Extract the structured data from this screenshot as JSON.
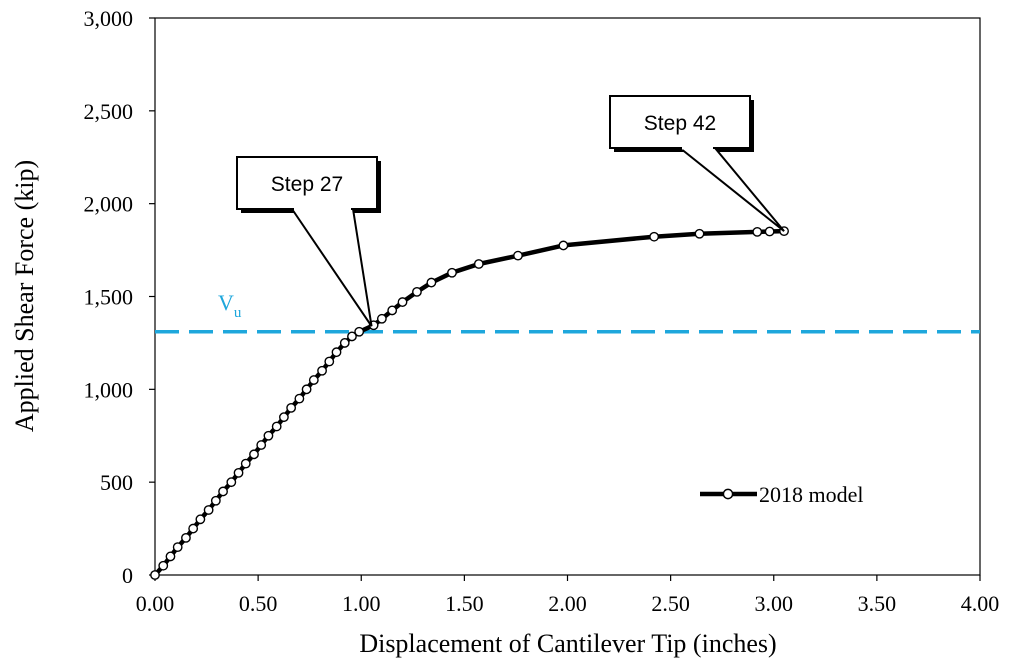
{
  "chart_data": {
    "type": "line",
    "xlabel": "Displacement of Cantilever Tip (inches)",
    "ylabel": "Applied Shear Force (kip)",
    "xlim": [
      0,
      4
    ],
    "ylim": [
      0,
      3000
    ],
    "x_ticks": [
      0,
      0.5,
      1.0,
      1.5,
      2.0,
      2.5,
      3.0,
      3.5,
      4.0
    ],
    "x_tick_labels": [
      "0.00",
      "0.50",
      "1.00",
      "1.50",
      "2.00",
      "2.50",
      "3.00",
      "3.50",
      "4.00"
    ],
    "y_ticks": [
      0,
      500,
      1000,
      1500,
      2000,
      2500,
      3000
    ],
    "y_tick_labels": [
      "0",
      "500",
      "1,000",
      "1,500",
      "2,000",
      "2,500",
      "3,000"
    ],
    "grid": false,
    "legend_position": "bottom-right",
    "series": [
      {
        "name": "2018 model",
        "color": "#000000",
        "marker": "open-circle",
        "points": [
          [
            0.0,
            0
          ],
          [
            0.04,
            50
          ],
          [
            0.075,
            100
          ],
          [
            0.11,
            150
          ],
          [
            0.15,
            200
          ],
          [
            0.185,
            250
          ],
          [
            0.22,
            300
          ],
          [
            0.26,
            350
          ],
          [
            0.295,
            400
          ],
          [
            0.33,
            450
          ],
          [
            0.37,
            500
          ],
          [
            0.405,
            550
          ],
          [
            0.44,
            600
          ],
          [
            0.48,
            650
          ],
          [
            0.515,
            700
          ],
          [
            0.55,
            750
          ],
          [
            0.59,
            800
          ],
          [
            0.625,
            850
          ],
          [
            0.66,
            900
          ],
          [
            0.7,
            950
          ],
          [
            0.735,
            1000
          ],
          [
            0.77,
            1050
          ],
          [
            0.81,
            1100
          ],
          [
            0.845,
            1150
          ],
          [
            0.88,
            1200
          ],
          [
            0.92,
            1250
          ],
          [
            0.955,
            1285
          ],
          [
            0.99,
            1310
          ],
          [
            1.06,
            1345
          ],
          [
            1.1,
            1380
          ],
          [
            1.15,
            1425
          ],
          [
            1.2,
            1470
          ],
          [
            1.27,
            1525
          ],
          [
            1.34,
            1575
          ],
          [
            1.44,
            1628
          ],
          [
            1.57,
            1675
          ],
          [
            1.76,
            1720
          ],
          [
            1.98,
            1775
          ],
          [
            2.42,
            1822
          ],
          [
            2.64,
            1838
          ],
          [
            2.92,
            1848
          ],
          [
            2.98,
            1850
          ],
          [
            3.05,
            1852
          ]
        ]
      }
    ],
    "reference_line": {
      "label_main": "V",
      "label_sub": "u",
      "value": 1310,
      "color": "#1EA7DC",
      "style": "dashed"
    },
    "annotations": [
      {
        "text": "Step 27",
        "point": [
          1.05,
          1340
        ]
      },
      {
        "text": "Step 42",
        "point": [
          3.05,
          1852
        ]
      }
    ]
  }
}
